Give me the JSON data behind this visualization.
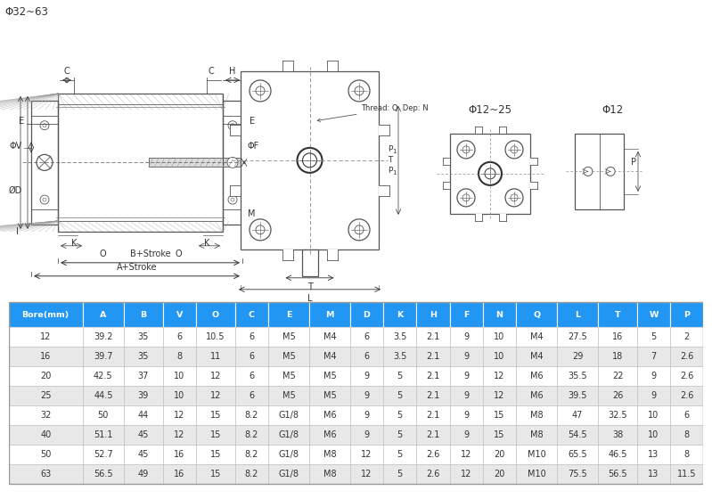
{
  "header_bg": "#2196F3",
  "header_text_color": "#ffffff",
  "row_bg_even": "#ffffff",
  "row_bg_odd": "#e8e8e8",
  "row_text_color": "#333333",
  "table_headers": [
    "Bore(mm)",
    "A",
    "B",
    "V",
    "O",
    "C",
    "E",
    "M",
    "D",
    "K",
    "H",
    "F",
    "N",
    "Q",
    "L",
    "T",
    "W",
    "P"
  ],
  "table_data": [
    [
      "12",
      "39.2",
      "35",
      "6",
      "10.5",
      "6",
      "M5",
      "M4",
      "6",
      "3.5",
      "2.1",
      "9",
      "10",
      "M4",
      "27.5",
      "16",
      "5",
      "2"
    ],
    [
      "16",
      "39.7",
      "35",
      "8",
      "11",
      "6",
      "M5",
      "M4",
      "6",
      "3.5",
      "2.1",
      "9",
      "10",
      "M4",
      "29",
      "18",
      "7",
      "2.6"
    ],
    [
      "20",
      "42.5",
      "37",
      "10",
      "12",
      "6",
      "M5",
      "M5",
      "9",
      "5",
      "2.1",
      "9",
      "12",
      "M6",
      "35.5",
      "22",
      "9",
      "2.6"
    ],
    [
      "25",
      "44.5",
      "39",
      "10",
      "12",
      "6",
      "M5",
      "M5",
      "9",
      "5",
      "2.1",
      "9",
      "12",
      "M6",
      "39.5",
      "26",
      "9",
      "2.6"
    ],
    [
      "32",
      "50",
      "44",
      "12",
      "15",
      "8.2",
      "G1/8",
      "M6",
      "9",
      "5",
      "2.1",
      "9",
      "15",
      "M8",
      "47",
      "32.5",
      "10",
      "6"
    ],
    [
      "40",
      "51.1",
      "45",
      "12",
      "15",
      "8.2",
      "G1/8",
      "M6",
      "9",
      "5",
      "2.1",
      "9",
      "15",
      "M8",
      "54.5",
      "38",
      "10",
      "8"
    ],
    [
      "50",
      "52.7",
      "45",
      "16",
      "15",
      "8.2",
      "G1/8",
      "M8",
      "12",
      "5",
      "2.6",
      "12",
      "20",
      "M10",
      "65.5",
      "46.5",
      "13",
      "8"
    ],
    [
      "63",
      "56.5",
      "49",
      "16",
      "15",
      "8.2",
      "G1/8",
      "M8",
      "12",
      "5",
      "2.6",
      "12",
      "20",
      "M10",
      "75.5",
      "56.5",
      "13",
      "11.5"
    ]
  ]
}
